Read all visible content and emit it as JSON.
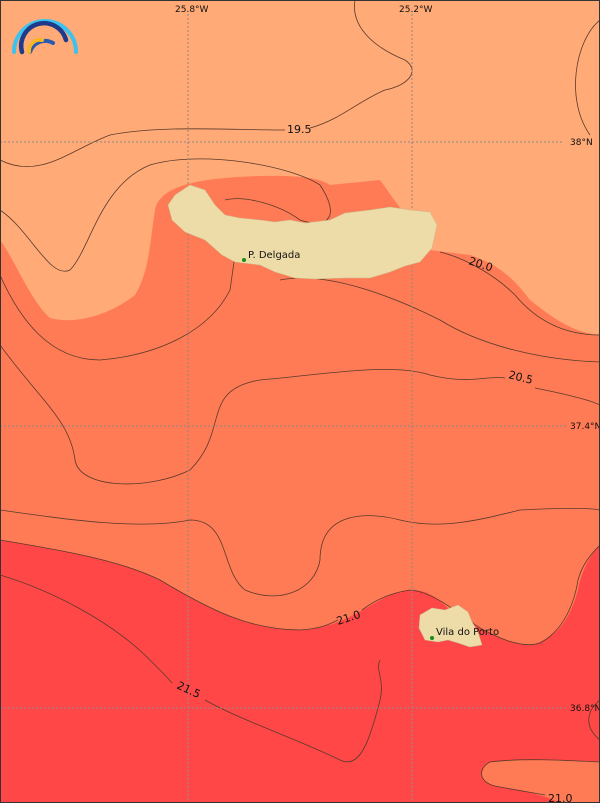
{
  "colors": {
    "band_19_5_20": "#FFAA77",
    "band_20_21": "#FF7B55",
    "band_21_22": "#FF4747",
    "land": "#EEDCA8",
    "city_marker": "#1a8a1a"
  },
  "grid": {
    "longitudes": [
      "25.8°W",
      "25.2°W"
    ],
    "latitudes": [
      "38°N",
      "37.4°N",
      "36.8°N"
    ]
  },
  "contour_labels": [
    "19.5",
    "20.0",
    "20.5",
    "21.0",
    "21.5",
    "21.0"
  ],
  "cities": [
    {
      "name": "P. Delgada"
    },
    {
      "name": "Vila do Porto"
    }
  ],
  "logo": {
    "icon": "rainbow-arc-logo"
  }
}
